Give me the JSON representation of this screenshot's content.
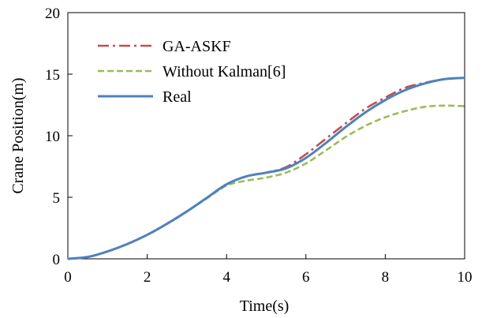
{
  "chart_data": {
    "type": "line",
    "title": "",
    "xlabel": "Time(s)",
    "ylabel": "Crane Position(m)",
    "xlim": [
      0,
      10
    ],
    "ylim": [
      0,
      20
    ],
    "xticks": [
      0,
      2,
      4,
      6,
      8,
      10
    ],
    "yticks": [
      0,
      5,
      10,
      15,
      20
    ],
    "grid": false,
    "legend_position": "top-left",
    "x": [
      0,
      0.5,
      1,
      1.5,
      2,
      2.5,
      3,
      3.5,
      4,
      4.5,
      5,
      5.5,
      6,
      6.5,
      7,
      7.5,
      8,
      8.5,
      9,
      9.5,
      10
    ],
    "series": [
      {
        "name": "GA-ASKF",
        "color": "#c0504d",
        "dash": "dash-dot",
        "values": [
          0,
          0.15,
          0.6,
          1.2,
          1.95,
          2.85,
          3.85,
          4.95,
          6.05,
          6.7,
          7.0,
          7.45,
          8.5,
          9.75,
          11.0,
          12.2,
          13.1,
          13.9,
          14.3,
          14.6,
          14.7
        ]
      },
      {
        "name": "Without Kalman[6]",
        "color": "#9bbb59",
        "dash": "dashed",
        "values": [
          0,
          0.15,
          0.6,
          1.2,
          1.95,
          2.85,
          3.85,
          4.9,
          5.95,
          6.35,
          6.6,
          7.0,
          7.75,
          8.8,
          9.9,
          10.8,
          11.5,
          12.0,
          12.35,
          12.45,
          12.4
        ]
      },
      {
        "name": "Real",
        "color": "#4f81bd",
        "dash": "solid",
        "values": [
          0,
          0.15,
          0.6,
          1.2,
          1.95,
          2.85,
          3.85,
          4.95,
          6.05,
          6.7,
          7.0,
          7.35,
          8.2,
          9.4,
          10.7,
          11.9,
          12.9,
          13.7,
          14.25,
          14.6,
          14.7
        ]
      }
    ]
  }
}
